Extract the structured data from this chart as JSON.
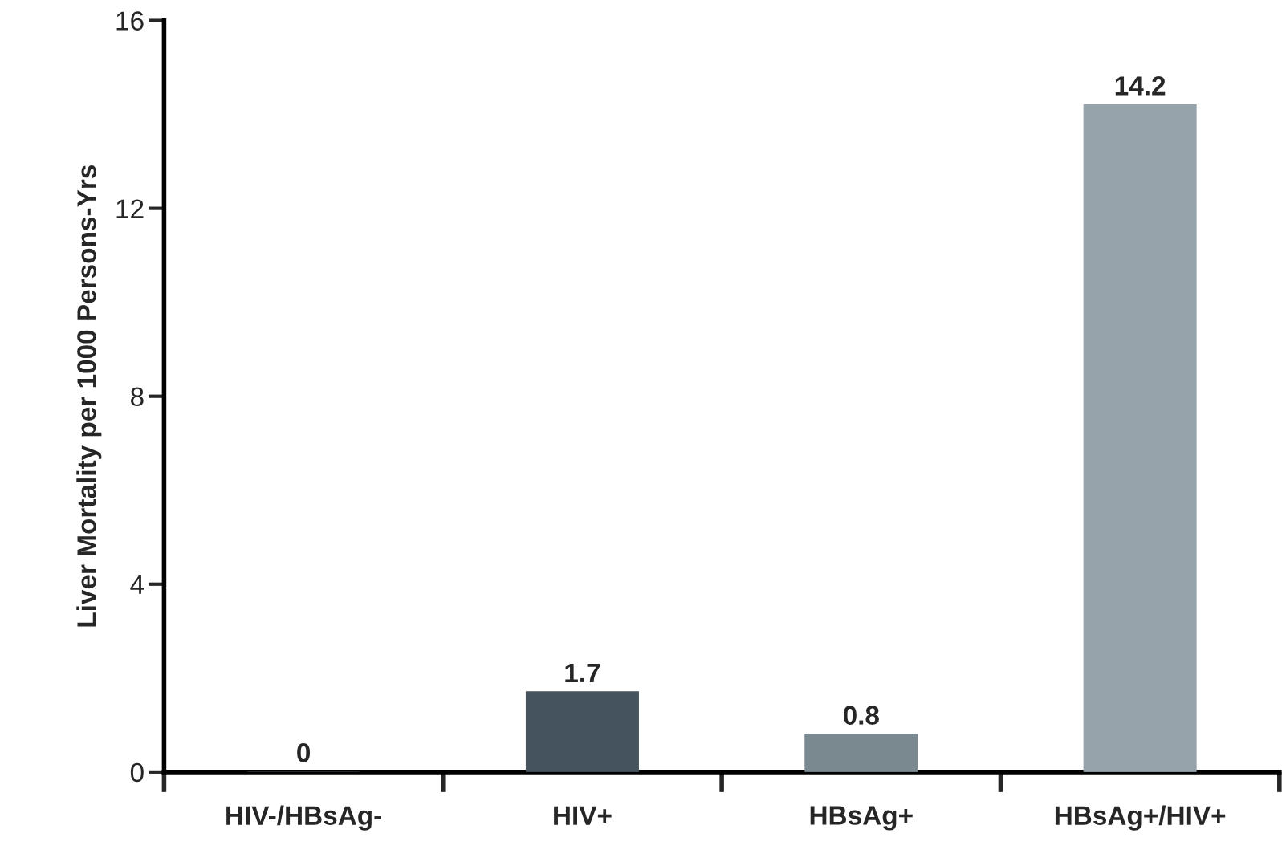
{
  "chart_data": {
    "type": "bar",
    "ylabel": "Liver Mortality per 1000 Persons-Yrs",
    "categories": [
      "HIV-/HBsAg-",
      "HIV+",
      "HBsAg+",
      "HBsAg+/HIV+"
    ],
    "values": [
      0,
      1.7,
      0.8,
      14.2
    ],
    "colors": [
      "#2b3338",
      "#44535e",
      "#7a8890",
      "#96a3ab"
    ],
    "ylim": [
      0,
      16
    ],
    "yticks": [
      0,
      4,
      8,
      12,
      16
    ],
    "grid": false,
    "legend": false,
    "data_labels": true
  }
}
